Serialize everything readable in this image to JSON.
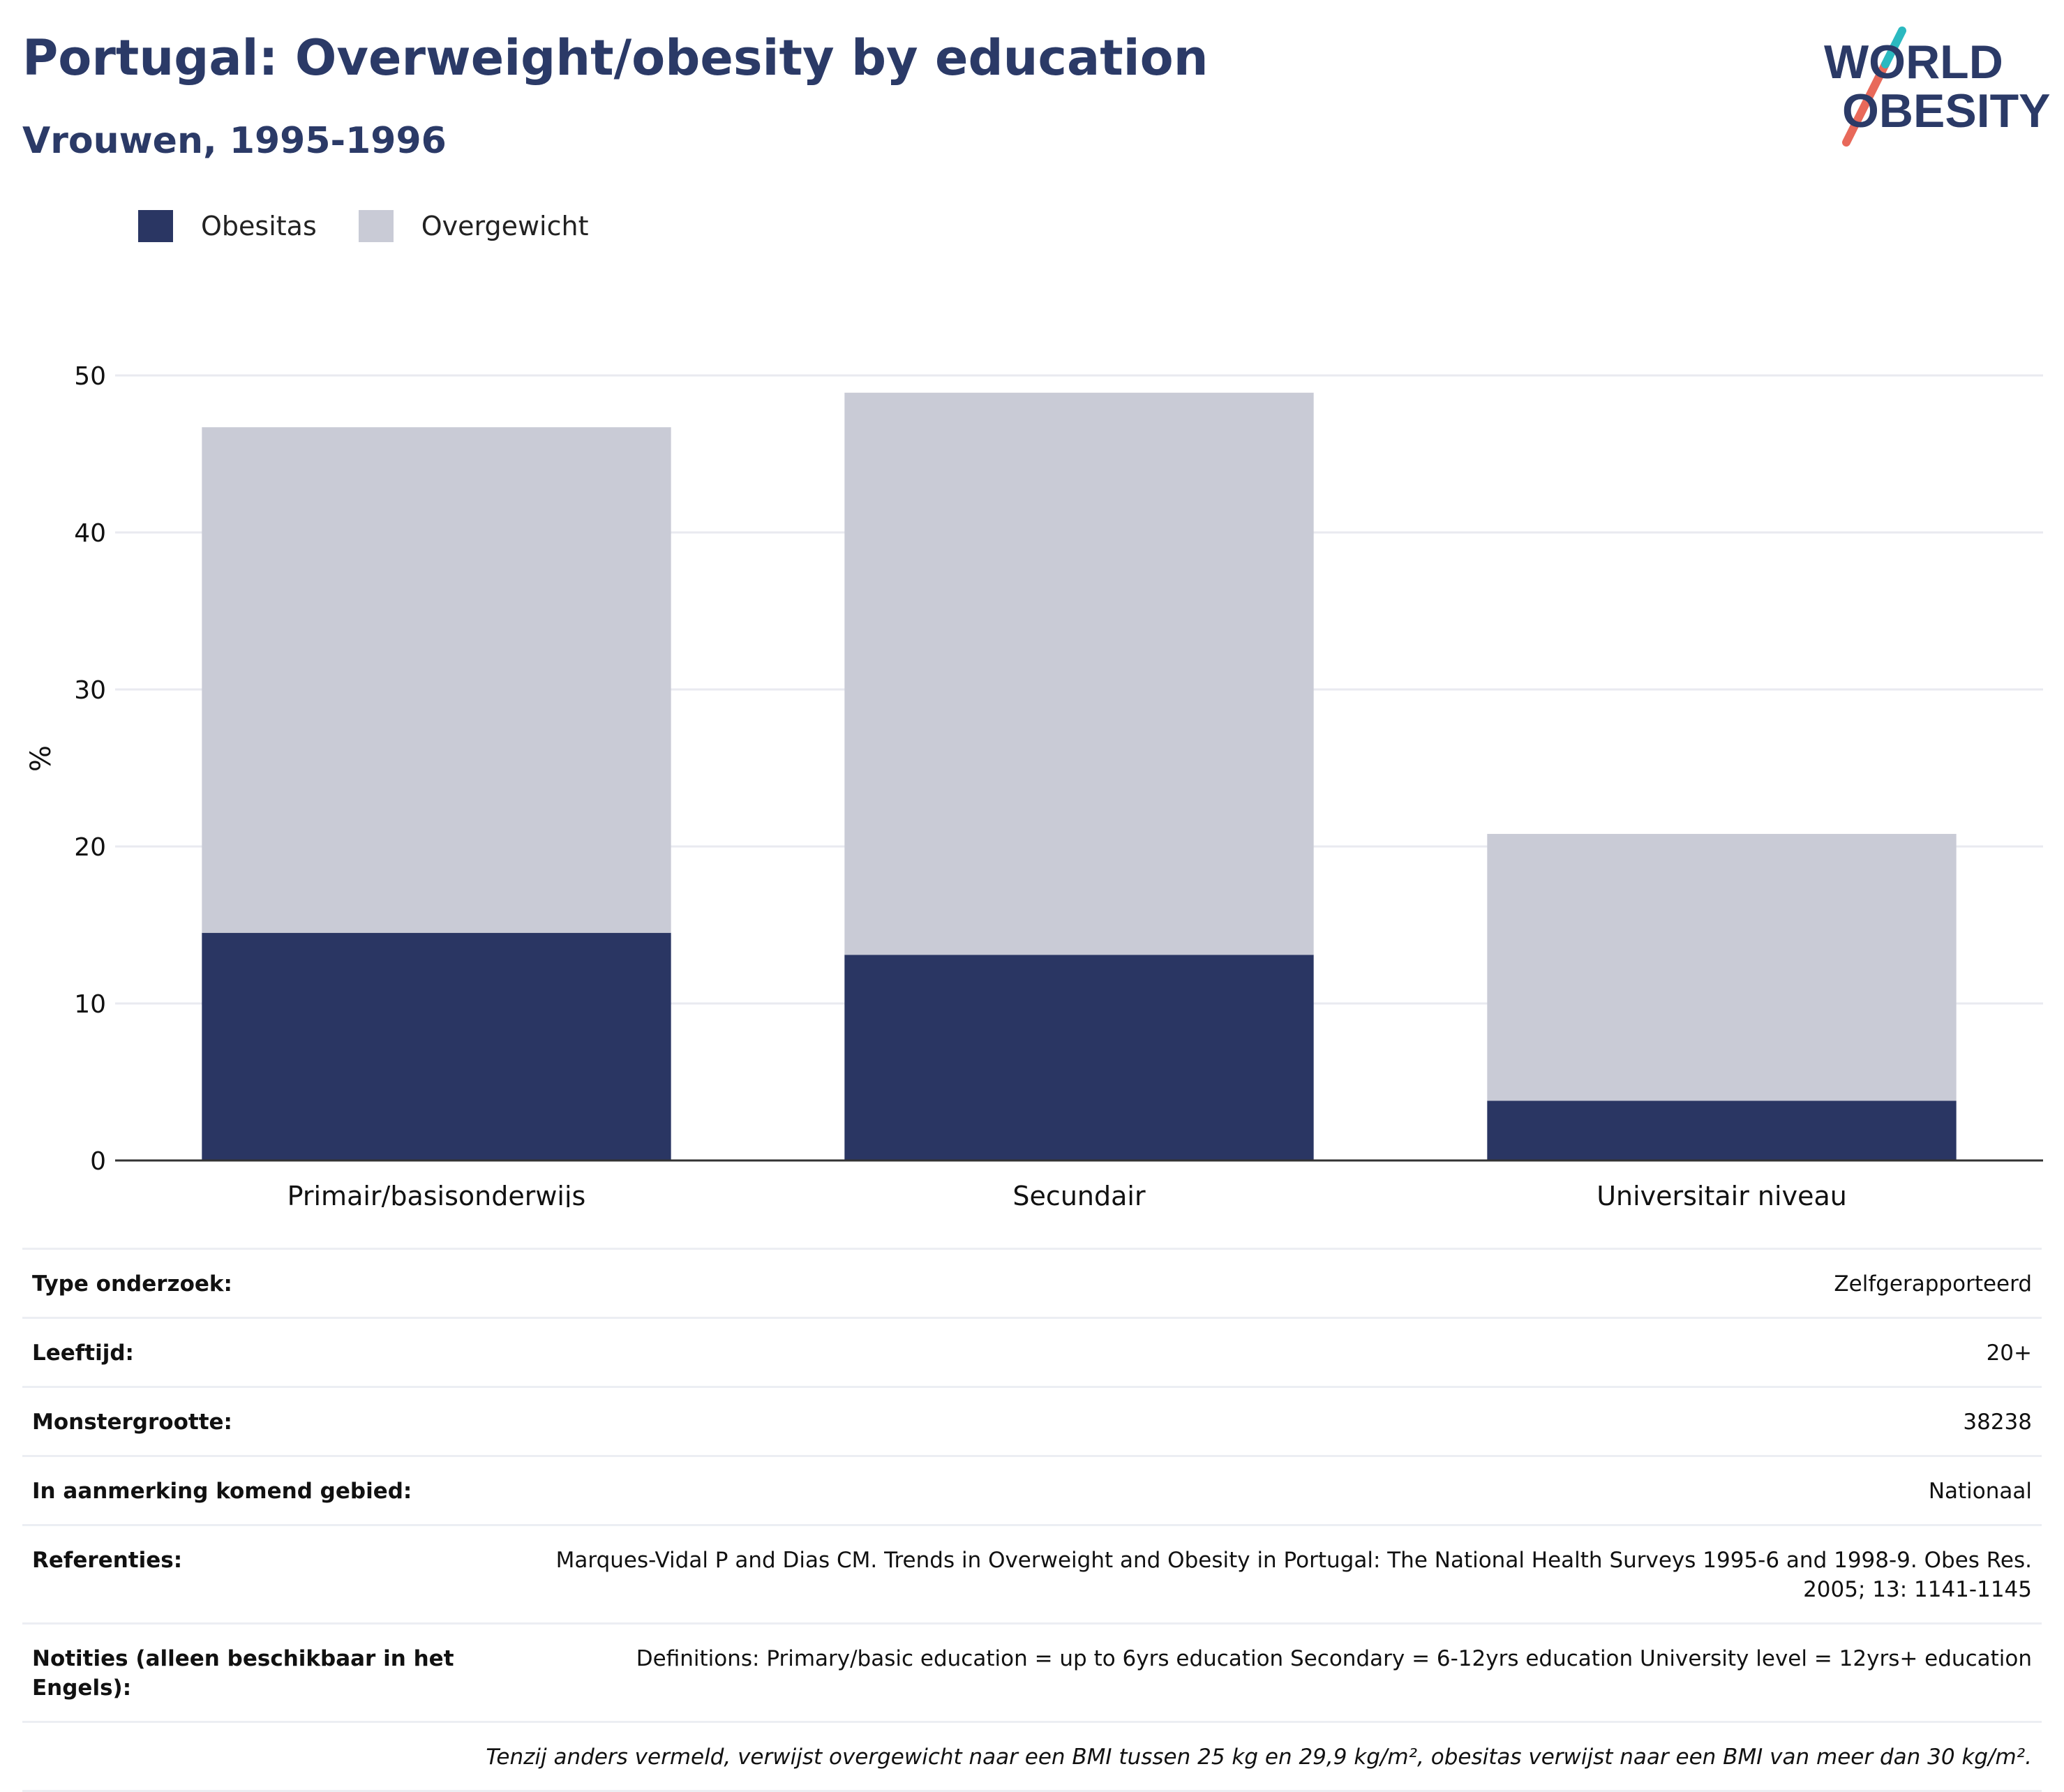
{
  "header": {
    "title": "Portugal: Overweight/obesity by education",
    "subtitle": "Vrouwen, 1995-1996"
  },
  "logo": {
    "line1": "WORLD",
    "line2": "OBESITY",
    "colors": {
      "text": "#2b3a67",
      "teal": "#2bb9c0",
      "coral": "#e8695a"
    }
  },
  "colors": {
    "obesitas": "#2a3663",
    "overgewicht": "#c9cbd6",
    "title": "#2b3a67",
    "grid": "#e9eaf0",
    "axis": "#333333"
  },
  "chart_data": {
    "type": "bar",
    "stacked": true,
    "categories": [
      "Primair/basisonderwijs",
      "Secundair",
      "Universitair niveau"
    ],
    "series": [
      {
        "name": "Obesitas",
        "values": [
          14.5,
          13.1,
          3.8
        ]
      },
      {
        "name": "Overgewicht",
        "values": [
          32.2,
          35.8,
          17.0
        ]
      }
    ],
    "totals": [
      46.7,
      48.9,
      20.8
    ],
    "ylabel": "%",
    "xlabel": "",
    "ylim": [
      0,
      50
    ],
    "yticks": [
      0,
      10,
      20,
      30,
      40,
      50
    ],
    "grid": true,
    "legend_position": "top-left"
  },
  "info": {
    "rows": [
      {
        "label": "Type onderzoek:",
        "value": "Zelfgerapporteerd"
      },
      {
        "label": "Leeftijd:",
        "value": "20+"
      },
      {
        "label": "Monstergrootte:",
        "value": "38238"
      },
      {
        "label": "In aanmerking komend gebied:",
        "value": "Nationaal"
      },
      {
        "label": "Referenties:",
        "value": "Marques-Vidal P and Dias CM. Trends in Overweight and Obesity in Portugal: The National Health Surveys 1995-6 and 1998-9. Obes Res. 2005; 13: 1141-1145"
      },
      {
        "label": "Notities (alleen beschikbaar in het Engels):",
        "value": "Definitions: Primary/basic education = up to 6yrs education Secondary = 6-12yrs education University level = 12yrs+ education"
      }
    ],
    "footnote": "Tenzij anders vermeld, verwijst overgewicht naar een BMI tussen 25 kg en 29,9 kg/m², obesitas verwijst naar een BMI van meer dan 30 kg/m²."
  }
}
